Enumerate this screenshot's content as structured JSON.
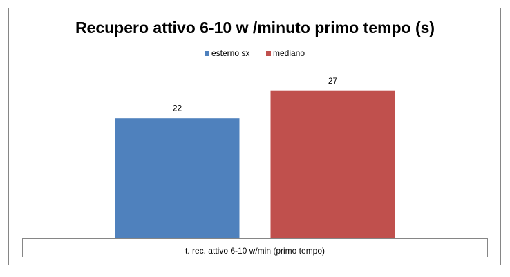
{
  "chart_data": {
    "type": "bar",
    "title": "Recupero attivo 6-10 w /minuto  primo tempo (s)",
    "categories": [
      "t. rec. attivo 6-10 w/min (primo tempo)"
    ],
    "series": [
      {
        "name": "esterno sx",
        "color": "#4f81bd",
        "values": [
          22
        ]
      },
      {
        "name": "mediano",
        "color": "#c0504d",
        "values": [
          27
        ]
      }
    ],
    "ylim": [
      0,
      30
    ],
    "legend": "top"
  }
}
